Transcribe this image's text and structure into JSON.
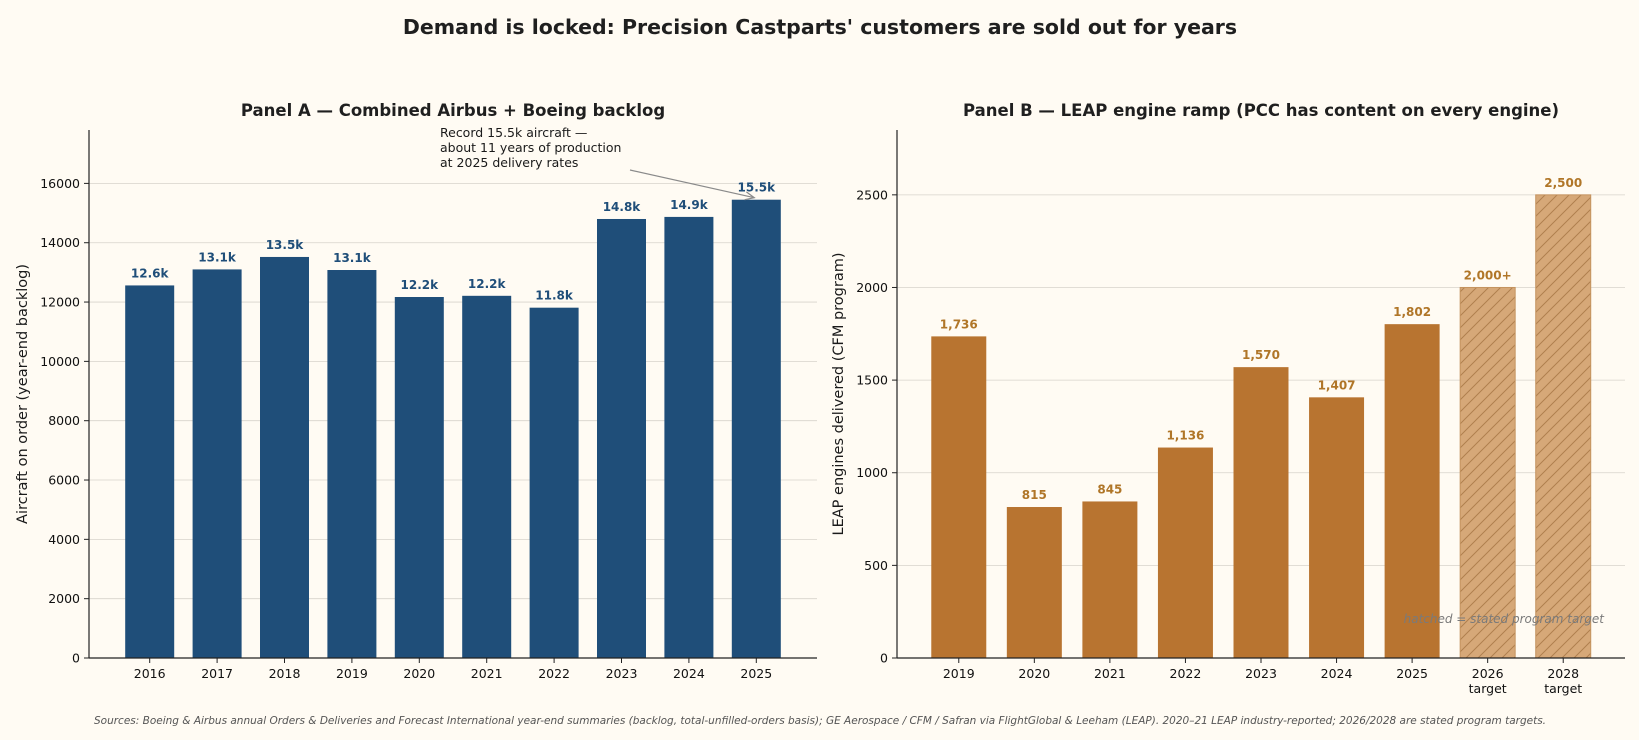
{
  "suptitle": "Demand is locked: Precision Castparts' customers are sold out for years",
  "footer_source": "Sources: Boeing & Airbus annual Orders & Deliveries and Forecast International year-end summaries (backlog, total-unfilled-orders basis); GE Aerospace / CFM / Safran via FlightGlobal & Leeham (LEAP). 2020–21 LEAP industry-reported; 2026/2028 are stated program targets.",
  "colors": {
    "background": "#fffbf3",
    "panel_a_bar": "#1f4e79",
    "panel_b_bar": "#b87430",
    "panel_b_target": "#d6a878",
    "grid": "#d7d3cb",
    "axis": "#222222"
  },
  "chart_data": [
    {
      "type": "bar",
      "title": "Panel A — Combined Airbus + Boeing backlog",
      "xlabel": "",
      "ylabel": "Aircraft on order (year-end backlog)",
      "categories": [
        "2016",
        "2017",
        "2018",
        "2019",
        "2020",
        "2021",
        "2022",
        "2023",
        "2024",
        "2025"
      ],
      "values": [
        12560,
        13100,
        13520,
        13080,
        12170,
        12210,
        11810,
        14800,
        14870,
        15450
      ],
      "data_labels": [
        "12.6k",
        "13.1k",
        "13.5k",
        "13.1k",
        "12.2k",
        "12.2k",
        "11.8k",
        "14.8k",
        "14.9k",
        "15.5k"
      ],
      "ylim": [
        0,
        17800
      ],
      "yticks": [
        0,
        2000,
        4000,
        6000,
        8000,
        10000,
        12000,
        14000,
        16000
      ],
      "ytick_labels": [
        "0",
        "2000",
        "4000",
        "6000",
        "8000",
        "10000",
        "12000",
        "14000",
        "16000"
      ],
      "grid": true,
      "annotation": {
        "lines": [
          "Record 15.5k aircraft —",
          "about 11 years of production",
          "at 2025 delivery rates"
        ],
        "target_category": "2025",
        "target_value": 15450
      }
    },
    {
      "type": "bar",
      "title": "Panel B — LEAP engine ramp (PCC has content on every engine)",
      "xlabel": "",
      "ylabel": "LEAP engines delivered (CFM program)",
      "categories": [
        [
          "2019"
        ],
        [
          "2020"
        ],
        [
          "2021"
        ],
        [
          "2022"
        ],
        [
          "2023"
        ],
        [
          "2024"
        ],
        [
          "2025"
        ],
        [
          "2026",
          "target"
        ],
        [
          "2028",
          "target"
        ]
      ],
      "values": [
        1736,
        815,
        845,
        1136,
        1570,
        1407,
        1802,
        2000,
        2500
      ],
      "data_labels": [
        "1,736",
        "815",
        "845",
        "1,136",
        "1,570",
        "1,407",
        "1,802",
        "2,000+",
        "2,500"
      ],
      "is_target": [
        false,
        false,
        false,
        false,
        false,
        false,
        false,
        true,
        true
      ],
      "ylim": [
        0,
        2850
      ],
      "yticks": [
        0,
        500,
        1000,
        1500,
        2000,
        2500
      ],
      "ytick_labels": [
        "0",
        "500",
        "1000",
        "1500",
        "2000",
        "2500"
      ],
      "grid": true,
      "hatch_note": "hatched = stated program target"
    }
  ]
}
